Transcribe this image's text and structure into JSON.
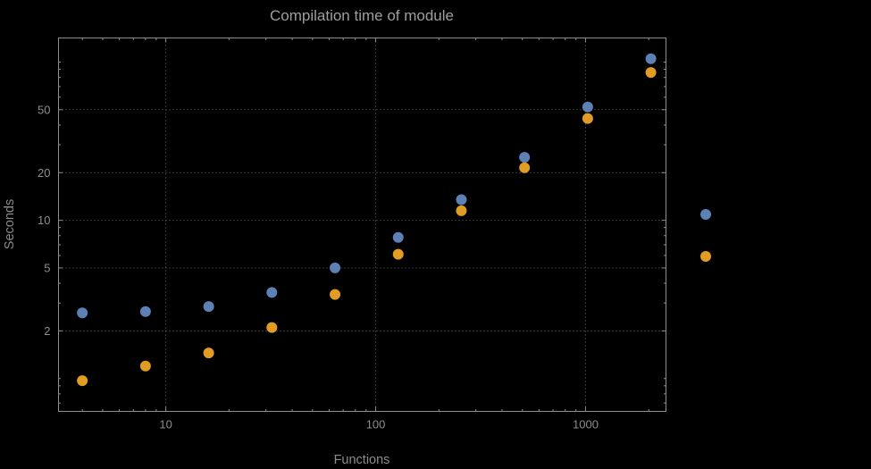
{
  "chart_data": {
    "type": "scatter",
    "title": "Compilation time of module",
    "xlabel": "Functions",
    "ylabel": "Seconds",
    "log_x": true,
    "log_y": true,
    "grid": true,
    "legend_position": "right",
    "xlim": [
      3.08,
      2417
    ],
    "ylim": [
      0.62,
      142
    ],
    "x_ticks": [
      10,
      100,
      1000
    ],
    "x_tick_labels": [
      "10",
      "100",
      "1000"
    ],
    "y_ticks": [
      2,
      5,
      10,
      20,
      50
    ],
    "y_tick_labels": [
      "2",
      "5",
      "10",
      "20",
      "50"
    ],
    "x": [
      4,
      8,
      16,
      32,
      64,
      128,
      256,
      512,
      1024,
      2048
    ],
    "series": [
      {
        "name": "series-1-blue",
        "color": "#5e81b5",
        "values": [
          2.6,
          2.65,
          2.85,
          3.5,
          5.0,
          7.8,
          13.5,
          25,
          52,
          105
        ]
      },
      {
        "name": "series-2-orange",
        "color": "#e19c24",
        "values": [
          0.97,
          1.2,
          1.45,
          2.1,
          3.4,
          6.1,
          11.5,
          21.5,
          44,
          86
        ]
      }
    ]
  },
  "legend": {
    "markers": [
      {
        "name": "legend-marker-series-1",
        "color": "#5e81b5"
      },
      {
        "name": "legend-marker-series-2",
        "color": "#e19c24"
      }
    ]
  },
  "colors": {
    "background": "#000000",
    "frame": "#8f8f8f",
    "grid": "#6f6f6f",
    "text": "#8c8c8c"
  }
}
